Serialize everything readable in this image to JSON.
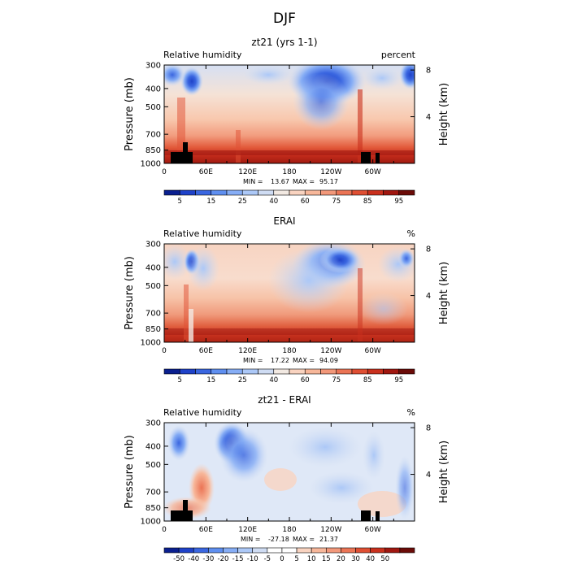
{
  "figure": {
    "title": "DJF"
  },
  "colors": {
    "rh": [
      "#0a1f8f",
      "#1f42c9",
      "#3a66e0",
      "#5f8ff0",
      "#86adf5",
      "#acc8f7",
      "#cfdcf3",
      "#f2e9e2",
      "#f9d3c0",
      "#f7b79a",
      "#f2987a",
      "#eb7455",
      "#df4f33",
      "#c9301d",
      "#a01710",
      "#6b0b08"
    ],
    "diff": [
      "#0a1f8f",
      "#1f42c9",
      "#3a66e0",
      "#5f8ff0",
      "#86adf5",
      "#acc8f7",
      "#cfdcf3",
      "#ffffff",
      "#ffffff",
      "#f9d3c0",
      "#f7b79a",
      "#f2987a",
      "#eb7455",
      "#df4f33",
      "#c9301d",
      "#a01710",
      "#6b0b08"
    ],
    "terrain": "#000000"
  },
  "chart_data": [
    {
      "type": "heatmap",
      "title": "zt21 (yrs 1-1)",
      "left_label": "Relative humidity",
      "right_label": "percent",
      "ylabel": "Pressure (mb)",
      "ylabel_right": "Height (km)",
      "x_ticks": [
        "0",
        "60E",
        "120E",
        "180",
        "120W",
        "60W"
      ],
      "x_tick_values": [
        0,
        60,
        120,
        180,
        240,
        300
      ],
      "xlim": [
        0,
        360
      ],
      "y_ticks": [
        "300",
        "400",
        "500",
        "700",
        "850",
        "1000"
      ],
      "y_tick_values": [
        300,
        400,
        500,
        700,
        850,
        1000
      ],
      "ylim": [
        1000,
        300
      ],
      "height_ticks": [
        "8",
        "4"
      ],
      "height_tick_values": [
        8,
        4
      ],
      "stats": {
        "min_label": "MIN =",
        "min": "13.67",
        "max_label": "MAX =",
        "max": "95.17"
      },
      "colorbar": {
        "labels": [
          "5",
          "15",
          "25",
          "40",
          "60",
          "75",
          "85",
          "95"
        ],
        "label_positions": [
          1,
          3,
          5,
          7,
          9,
          11,
          13,
          15
        ],
        "colors": "rh"
      }
    },
    {
      "type": "heatmap",
      "title": "ERAI",
      "left_label": "Relative humidity",
      "right_label": "%",
      "ylabel": "Pressure (mb)",
      "ylabel_right": "Height (km)",
      "x_ticks": [
        "0",
        "60E",
        "120E",
        "180",
        "120W",
        "60W"
      ],
      "x_tick_values": [
        0,
        60,
        120,
        180,
        240,
        300
      ],
      "xlim": [
        0,
        360
      ],
      "y_ticks": [
        "300",
        "400",
        "500",
        "700",
        "850",
        "1000"
      ],
      "y_tick_values": [
        300,
        400,
        500,
        700,
        850,
        1000
      ],
      "ylim": [
        1000,
        300
      ],
      "height_ticks": [
        "8",
        "4"
      ],
      "height_tick_values": [
        8,
        4
      ],
      "stats": {
        "min_label": "MIN =",
        "min": "17.22",
        "max_label": "MAX =",
        "max": "94.09"
      },
      "colorbar": {
        "labels": [
          "5",
          "15",
          "25",
          "40",
          "60",
          "75",
          "85",
          "95"
        ],
        "label_positions": [
          1,
          3,
          5,
          7,
          9,
          11,
          13,
          15
        ],
        "colors": "rh"
      }
    },
    {
      "type": "heatmap",
      "title": "zt21 - ERAI",
      "left_label": "Relative humidity",
      "right_label": "%",
      "ylabel": "Pressure (mb)",
      "ylabel_right": "Height (km)",
      "x_ticks": [
        "0",
        "60E",
        "120E",
        "180",
        "120W",
        "60W"
      ],
      "x_tick_values": [
        0,
        60,
        120,
        180,
        240,
        300
      ],
      "xlim": [
        0,
        360
      ],
      "y_ticks": [
        "300",
        "400",
        "500",
        "700",
        "850",
        "1000"
      ],
      "y_tick_values": [
        300,
        400,
        500,
        700,
        850,
        1000
      ],
      "ylim": [
        1000,
        300
      ],
      "height_ticks": [
        "8",
        "4"
      ],
      "height_tick_values": [
        8,
        4
      ],
      "stats": {
        "min_label": "MIN =",
        "min": "-27.18",
        "max_label": "MAX =",
        "max": "21.37"
      },
      "colorbar": {
        "labels": [
          "-50",
          "-40",
          "-30",
          "-20",
          "-15",
          "-10",
          "-5",
          "0",
          "5",
          "10",
          "15",
          "20",
          "30",
          "40",
          "50"
        ],
        "label_positions": [
          1,
          2,
          3,
          4,
          5,
          6,
          7,
          8,
          9,
          10,
          11,
          12,
          13,
          14,
          15
        ],
        "colors": "diff"
      }
    }
  ]
}
